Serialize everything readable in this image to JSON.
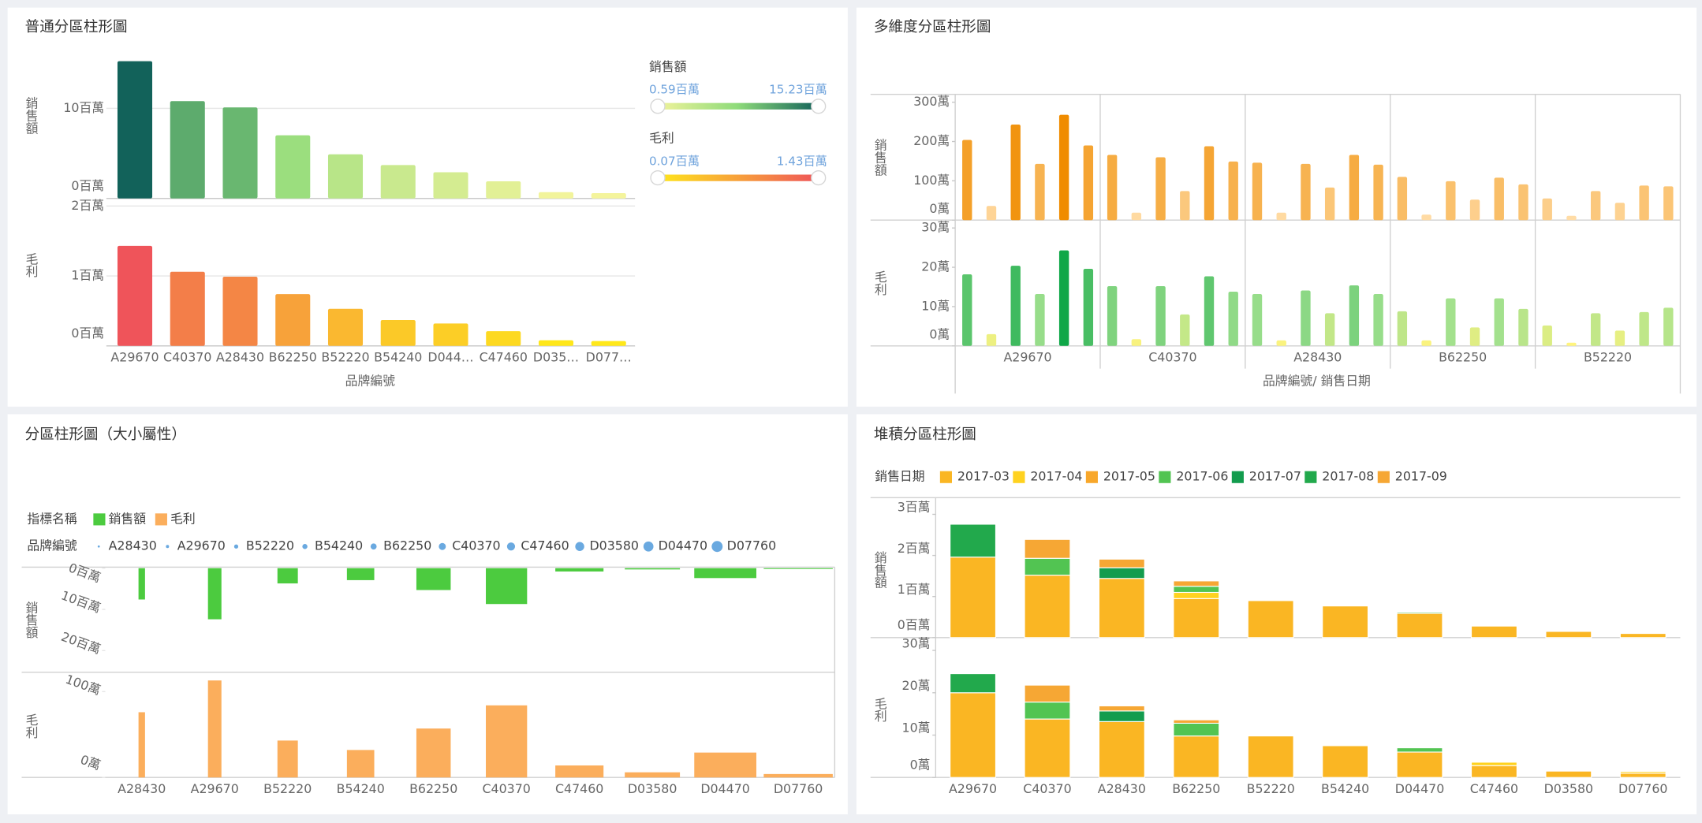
{
  "chart_data": [
    {
      "type": "bar",
      "title": "普通分區柱形圖",
      "x_label": "品牌編號",
      "grid": true,
      "categories": [
        "A29670",
        "C40370",
        "A28430",
        "B62250",
        "B52220",
        "B54240",
        "D044…",
        "C47460",
        "D035…",
        "D077…"
      ],
      "panels": [
        {
          "label": "銷售額",
          "values": [
            15.23,
            10.8,
            10.1,
            7.0,
            4.9,
            3.7,
            2.9,
            1.9,
            0.7,
            0.59
          ],
          "ylim": [
            0,
            16
          ],
          "yticks": [
            {
              "value": 0,
              "label": "0百萬"
            },
            {
              "value": 10,
              "label": "10百萬"
            }
          ],
          "colors": [
            "#f4f49c",
            "#8edb7a",
            "#12625a"
          ],
          "legend": {
            "title": "銷售額",
            "min": {
              "value": 0.59,
              "label": "0.59百萬"
            },
            "max": {
              "value": 15.23,
              "label": "15.23百萬"
            }
          }
        },
        {
          "label": "毛利",
          "values": [
            1.43,
            1.06,
            0.99,
            0.74,
            0.53,
            0.37,
            0.32,
            0.21,
            0.08,
            0.07
          ],
          "ylim": [
            0,
            2
          ],
          "yticks": [
            {
              "value": 0,
              "label": "0百萬"
            },
            {
              "value": 1,
              "label": "1百萬"
            },
            {
              "value": 2,
              "label": "2百萬"
            }
          ],
          "colors": [
            "#ffe81a",
            "#f7a13a",
            "#ef545a"
          ],
          "legend": {
            "title": "毛利",
            "min": {
              "value": 0.07,
              "label": "0.07百萬"
            },
            "max": {
              "value": 1.43,
              "label": "1.43百萬"
            }
          }
        }
      ]
    },
    {
      "type": "grouped-bar",
      "title": "多維度分區柱形圖",
      "x_label": "品牌編號/ 銷售日期",
      "categories": [
        "A29670",
        "C40370",
        "A28430",
        "B62250",
        "B52220"
      ],
      "panels": [
        {
          "label": "銷售額",
          "ylim": [
            0,
            320
          ],
          "yticks": [
            {
              "value": 0,
              "label": "0萬"
            },
            {
              "value": 100,
              "label": "100萬"
            },
            {
              "value": 200,
              "label": "200萬"
            },
            {
              "value": 300,
              "label": "300萬"
            }
          ],
          "colors": [
            "#ffdca6",
            "#f08c00"
          ],
          "values": [
            [
              204,
              36,
              243,
              143,
              268,
              190
            ],
            [
              166,
              19,
              160,
              74,
              188,
              149
            ],
            [
              146,
              19,
              143,
              83,
              166,
              141
            ],
            [
              110,
              14,
              99,
              52,
              108,
              91
            ],
            [
              55,
              11,
              74,
              44,
              88,
              86
            ]
          ]
        },
        {
          "label": "毛利",
          "ylim": [
            0,
            32
          ],
          "yticks": [
            {
              "value": 0,
              "label": "0萬"
            },
            {
              "value": 10,
              "label": "10萬"
            },
            {
              "value": 20,
              "label": "20萬"
            },
            {
              "value": 30,
              "label": "30萬"
            }
          ],
          "colors": [
            "#fff47e",
            "#9fe08e",
            "#0fa748"
          ],
          "values": [
            [
              18.2,
              3,
              20.4,
              13.2,
              24.3,
              19.6
            ],
            [
              15.2,
              1.7,
              15.2,
              8,
              17.7,
              13.8
            ],
            [
              13.2,
              1.4,
              14.1,
              8.3,
              15.4,
              13.2
            ],
            [
              8.8,
              1.4,
              12.1,
              4.7,
              12.1,
              9.4
            ],
            [
              5.2,
              0.8,
              8.3,
              3.9,
              8.6,
              9.7
            ]
          ]
        }
      ]
    },
    {
      "type": "sized-bar",
      "title": "分區柱形圖（大小屬性）",
      "categories": [
        "A28430",
        "A29670",
        "B52220",
        "B54240",
        "B62250",
        "C40370",
        "C47460",
        "D03580",
        "D04470",
        "D07760"
      ],
      "legend": {
        "title": "指標名稱",
        "items": [
          {
            "name": "銷售額",
            "color": "#4ccb3f"
          },
          {
            "name": "毛利",
            "color": "#fbae5c"
          }
        ]
      },
      "size_legend": {
        "title": "品牌編號",
        "color": "#6aa9e0"
      },
      "panels": [
        {
          "label": "銷售額",
          "inverted": true,
          "values": [
            7.6,
            12.4,
            3.7,
            2.9,
            5.3,
            8.7,
            0.8,
            0.3,
            2.4,
            0.2
          ],
          "ylim": [
            0,
            25
          ],
          "yticks": [
            {
              "value": 0,
              "label": "0百萬"
            },
            {
              "value": 10,
              "label": "10百萬"
            },
            {
              "value": 20,
              "label": "20百萬"
            }
          ]
        },
        {
          "label": "毛利",
          "values": [
            76,
            113,
            43,
            32,
            57,
            84,
            14,
            6,
            29,
            4
          ],
          "ylim": [
            0,
            120
          ],
          "yticks": [
            {
              "value": 0,
              "label": "0萬"
            },
            {
              "value": 100,
              "label": "100萬"
            }
          ]
        }
      ]
    },
    {
      "type": "stacked-bar",
      "title": "堆積分區柱形圖",
      "legend_title": "銷售日期",
      "categories": [
        "A29670",
        "C40370",
        "A28430",
        "B62250",
        "B52220",
        "B54240",
        "D04470",
        "C47460",
        "D03580",
        "D07760"
      ],
      "series": [
        {
          "name": "2017-03",
          "color": "#fab623"
        },
        {
          "name": "2017-04",
          "color": "#ffd21f"
        },
        {
          "name": "2017-05",
          "color": "#f8a72a"
        },
        {
          "name": "2017-06",
          "color": "#52c452"
        },
        {
          "name": "2017-07",
          "color": "#139c4e"
        },
        {
          "name": "2017-08",
          "color": "#22a94c"
        },
        {
          "name": "2017-09",
          "color": "#f6a734"
        }
      ],
      "panels": [
        {
          "label": "銷售額",
          "ylim": [
            0,
            3.3
          ],
          "yticks": [
            {
              "value": 0,
              "label": "0百萬"
            },
            {
              "value": 1,
              "label": "1百萬"
            },
            {
              "value": 2,
              "label": "2百萬"
            },
            {
              "value": 3,
              "label": "3百萬"
            }
          ],
          "values": [
            [
              1.96,
              1.52,
              1.44,
              0.95,
              0.9,
              0.77,
              0.59,
              0.28,
              0.15,
              0.1
            ],
            [
              null,
              null,
              null,
              0.15,
              null,
              null,
              null,
              null,
              null,
              null
            ],
            [
              null,
              null,
              null,
              null,
              null,
              null,
              null,
              null,
              null,
              null
            ],
            [
              null,
              0.41,
              null,
              0.15,
              null,
              null,
              0.03,
              null,
              null,
              null
            ],
            [
              null,
              null,
              0.26,
              null,
              null,
              null,
              null,
              null,
              null,
              null
            ],
            [
              0.8,
              null,
              null,
              null,
              null,
              null,
              null,
              null,
              null,
              null
            ],
            [
              null,
              0.46,
              0.21,
              0.13,
              null,
              null,
              null,
              null,
              null,
              null
            ]
          ]
        },
        {
          "label": "毛利",
          "ylim": [
            0,
            32
          ],
          "yticks": [
            {
              "value": 0,
              "label": "0萬"
            },
            {
              "value": 10,
              "label": "10萬"
            },
            {
              "value": 20,
              "label": "20萬"
            },
            {
              "value": 30,
              "label": "30萬"
            }
          ],
          "values": [
            [
              20,
              13.8,
              13.2,
              9.8,
              9.8,
              7.5,
              6,
              2.8,
              1.5,
              1
            ],
            [
              null,
              null,
              null,
              null,
              null,
              null,
              null,
              0.8,
              null,
              0.4
            ],
            [
              null,
              null,
              null,
              null,
              null,
              null,
              null,
              null,
              null,
              null
            ],
            [
              null,
              4,
              null,
              3,
              null,
              null,
              1,
              null,
              null,
              null
            ],
            [
              null,
              null,
              2.5,
              null,
              null,
              null,
              null,
              null,
              null,
              null
            ],
            [
              4.5,
              null,
              null,
              null,
              null,
              null,
              null,
              null,
              null,
              null
            ],
            [
              null,
              4,
              1.2,
              0.8,
              null,
              null,
              null,
              null,
              null,
              null
            ]
          ]
        }
      ]
    }
  ]
}
